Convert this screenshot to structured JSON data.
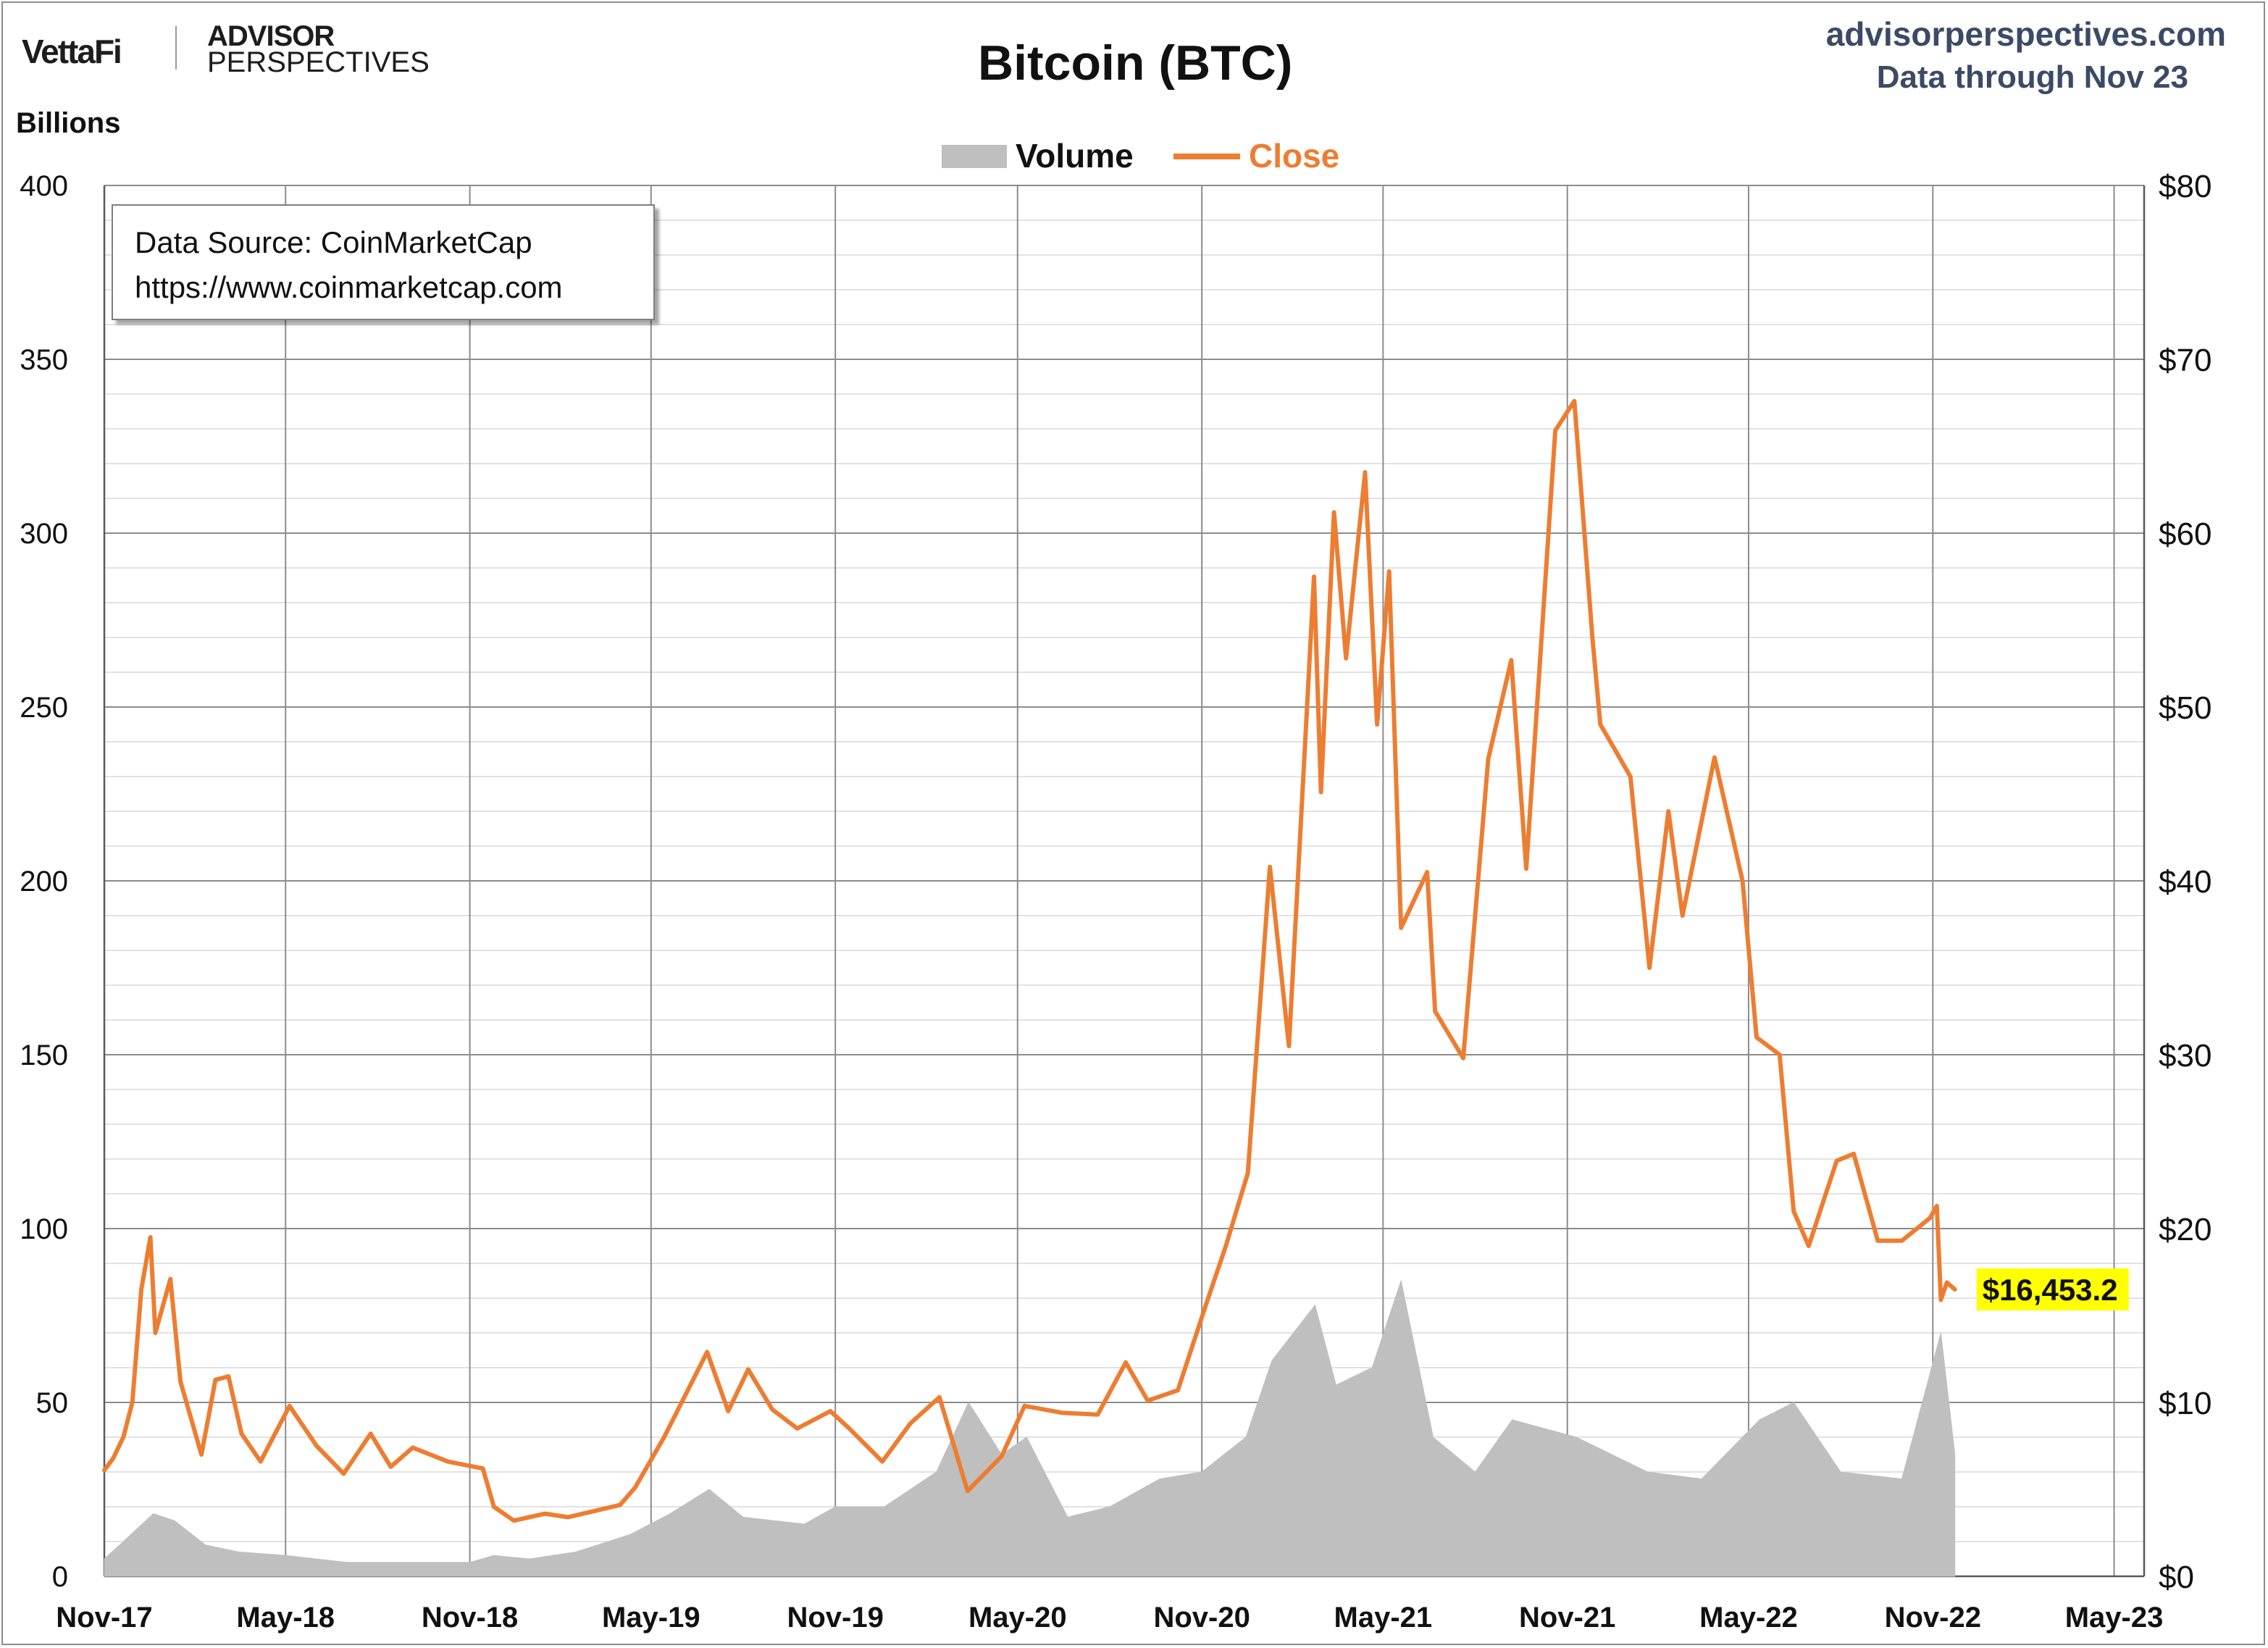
{
  "header": {
    "logo_vettafi": "VettaFi",
    "logo_advisor": "ADVISOR",
    "logo_perspectives": "PERSPECTIVES",
    "site": "advisorperspectives.com",
    "data_through": "Data through Nov 23"
  },
  "source_box": {
    "line1": "Data Source: CoinMarketCap",
    "line2": "https://www.coinmarketcap.com"
  },
  "colors": {
    "close": "#ed7d31",
    "volume": "#bfbfbf",
    "grid": "#d9d9d9",
    "major_grid": "#8c8c8c",
    "callout_bg": "#ffff00"
  },
  "chart_data": {
    "type": "line",
    "title": "Bitcoin (BTC)",
    "ylabel": "Billions",
    "ylim_left": [
      0,
      400
    ],
    "ylim_right": [
      0,
      80
    ],
    "left_ticks": [
      "0",
      "50",
      "100",
      "150",
      "200",
      "250",
      "300",
      "350",
      "400"
    ],
    "right_ticks": [
      "$0",
      "$10",
      "$20",
      "$30",
      "$40",
      "$50",
      "$60",
      "$70",
      "$80"
    ],
    "x_ticks": [
      "Nov-17",
      "May-18",
      "Nov-18",
      "May-19",
      "Nov-19",
      "May-20",
      "Nov-20",
      "May-21",
      "Nov-21",
      "May-22",
      "Nov-22",
      "May-23"
    ],
    "xlim": [
      "2017-11-01",
      "2023-05-31"
    ],
    "grid": true,
    "legend_position": "top-center",
    "series": [
      {
        "name": "Volume",
        "axis": "left",
        "unit": "Billions",
        "style": "area",
        "points": [
          [
            "2017-11-01",
            5
          ],
          [
            "2017-11-20",
            10
          ],
          [
            "2017-12-20",
            18
          ],
          [
            "2018-01-10",
            16
          ],
          [
            "2018-02-10",
            9
          ],
          [
            "2018-03-15",
            7
          ],
          [
            "2018-05-01",
            6
          ],
          [
            "2018-07-01",
            4
          ],
          [
            "2018-09-01",
            4
          ],
          [
            "2018-11-01",
            4
          ],
          [
            "2018-11-25",
            6
          ],
          [
            "2018-12-31",
            5
          ],
          [
            "2019-02-15",
            7
          ],
          [
            "2019-04-10",
            12
          ],
          [
            "2019-05-20",
            18
          ],
          [
            "2019-06-28",
            25
          ],
          [
            "2019-08-01",
            17
          ],
          [
            "2019-10-01",
            15
          ],
          [
            "2019-11-01",
            20
          ],
          [
            "2019-12-20",
            20
          ],
          [
            "2020-02-10",
            30
          ],
          [
            "2020-03-13",
            50
          ],
          [
            "2020-04-15",
            35
          ],
          [
            "2020-05-10",
            40
          ],
          [
            "2020-06-20",
            17
          ],
          [
            "2020-08-01",
            20
          ],
          [
            "2020-09-20",
            28
          ],
          [
            "2020-11-01",
            30
          ],
          [
            "2020-12-15",
            40
          ],
          [
            "2021-01-10",
            62
          ],
          [
            "2021-02-22",
            78
          ],
          [
            "2021-03-15",
            55
          ],
          [
            "2021-04-20",
            60
          ],
          [
            "2021-05-19",
            85
          ],
          [
            "2021-06-20",
            40
          ],
          [
            "2021-08-01",
            30
          ],
          [
            "2021-09-07",
            45
          ],
          [
            "2021-11-10",
            40
          ],
          [
            "2022-01-20",
            30
          ],
          [
            "2022-03-15",
            28
          ],
          [
            "2022-05-12",
            45
          ],
          [
            "2022-06-15",
            50
          ],
          [
            "2022-08-01",
            30
          ],
          [
            "2022-10-01",
            28
          ],
          [
            "2022-11-09",
            70
          ],
          [
            "2022-11-23",
            35
          ]
        ]
      },
      {
        "name": "Close",
        "axis": "right",
        "unit": "$ thousands",
        "style": "line",
        "points": [
          [
            "2017-11-01",
            6.1
          ],
          [
            "2017-11-10",
            6.8
          ],
          [
            "2017-11-20",
            8.0
          ],
          [
            "2017-11-29",
            10.0
          ],
          [
            "2017-12-08",
            16.5
          ],
          [
            "2017-12-17",
            19.5
          ],
          [
            "2017-12-22",
            14.0
          ],
          [
            "2018-01-06",
            17.1
          ],
          [
            "2018-01-16",
            11.2
          ],
          [
            "2018-02-06",
            7.0
          ],
          [
            "2018-02-20",
            11.3
          ],
          [
            "2018-03-05",
            11.5
          ],
          [
            "2018-03-18",
            8.2
          ],
          [
            "2018-04-06",
            6.6
          ],
          [
            "2018-05-05",
            9.8
          ],
          [
            "2018-06-01",
            7.5
          ],
          [
            "2018-06-28",
            5.9
          ],
          [
            "2018-07-25",
            8.2
          ],
          [
            "2018-08-14",
            6.3
          ],
          [
            "2018-09-05",
            7.4
          ],
          [
            "2018-10-10",
            6.6
          ],
          [
            "2018-11-14",
            6.2
          ],
          [
            "2018-11-25",
            4.0
          ],
          [
            "2018-12-15",
            3.2
          ],
          [
            "2019-01-15",
            3.6
          ],
          [
            "2019-02-07",
            3.4
          ],
          [
            "2019-03-31",
            4.1
          ],
          [
            "2019-04-15",
            5.1
          ],
          [
            "2019-05-14",
            8.0
          ],
          [
            "2019-06-26",
            12.9
          ],
          [
            "2019-07-17",
            9.5
          ],
          [
            "2019-08-06",
            11.9
          ],
          [
            "2019-08-30",
            9.6
          ],
          [
            "2019-09-24",
            8.5
          ],
          [
            "2019-10-27",
            9.5
          ],
          [
            "2019-11-15",
            8.5
          ],
          [
            "2019-12-18",
            6.6
          ],
          [
            "2020-01-15",
            8.8
          ],
          [
            "2020-02-13",
            10.3
          ],
          [
            "2020-03-12",
            4.9
          ],
          [
            "2020-04-15",
            6.9
          ],
          [
            "2020-05-08",
            9.8
          ],
          [
            "2020-06-15",
            9.4
          ],
          [
            "2020-07-20",
            9.3
          ],
          [
            "2020-08-17",
            12.3
          ],
          [
            "2020-09-08",
            10.1
          ],
          [
            "2020-10-08",
            10.7
          ],
          [
            "2020-11-05",
            15.6
          ],
          [
            "2020-11-25",
            19.0
          ],
          [
            "2020-12-17",
            23.2
          ],
          [
            "2021-01-08",
            40.8
          ],
          [
            "2021-01-27",
            30.5
          ],
          [
            "2021-02-21",
            57.5
          ],
          [
            "2021-02-28",
            45.1
          ],
          [
            "2021-03-13",
            61.2
          ],
          [
            "2021-03-25",
            52.8
          ],
          [
            "2021-04-13",
            63.5
          ],
          [
            "2021-04-25",
            49.0
          ],
          [
            "2021-05-07",
            57.8
          ],
          [
            "2021-05-19",
            37.3
          ],
          [
            "2021-06-14",
            40.5
          ],
          [
            "2021-06-22",
            32.5
          ],
          [
            "2021-07-20",
            29.8
          ],
          [
            "2021-08-14",
            47.0
          ],
          [
            "2021-09-06",
            52.7
          ],
          [
            "2021-09-21",
            40.7
          ],
          [
            "2021-10-20",
            65.9
          ],
          [
            "2021-11-08",
            67.6
          ],
          [
            "2021-11-26",
            54.0
          ],
          [
            "2021-12-04",
            49.0
          ],
          [
            "2022-01-03",
            46.0
          ],
          [
            "2022-01-22",
            35.0
          ],
          [
            "2022-02-10",
            44.0
          ],
          [
            "2022-02-24",
            38.0
          ],
          [
            "2022-03-28",
            47.1
          ],
          [
            "2022-04-25",
            40.0
          ],
          [
            "2022-05-09",
            31.0
          ],
          [
            "2022-06-01",
            30.0
          ],
          [
            "2022-06-15",
            21.0
          ],
          [
            "2022-06-30",
            19.0
          ],
          [
            "2022-07-28",
            23.9
          ],
          [
            "2022-08-14",
            24.3
          ],
          [
            "2022-09-07",
            19.3
          ],
          [
            "2022-10-01",
            19.3
          ],
          [
            "2022-10-29",
            20.6
          ],
          [
            "2022-11-05",
            21.3
          ],
          [
            "2022-11-09",
            15.9
          ],
          [
            "2022-11-15",
            16.9
          ],
          [
            "2022-11-23",
            16.5
          ]
        ]
      }
    ],
    "callout": {
      "label": "$16,453.2",
      "date": "2022-11-23",
      "value": 16.4532
    }
  }
}
